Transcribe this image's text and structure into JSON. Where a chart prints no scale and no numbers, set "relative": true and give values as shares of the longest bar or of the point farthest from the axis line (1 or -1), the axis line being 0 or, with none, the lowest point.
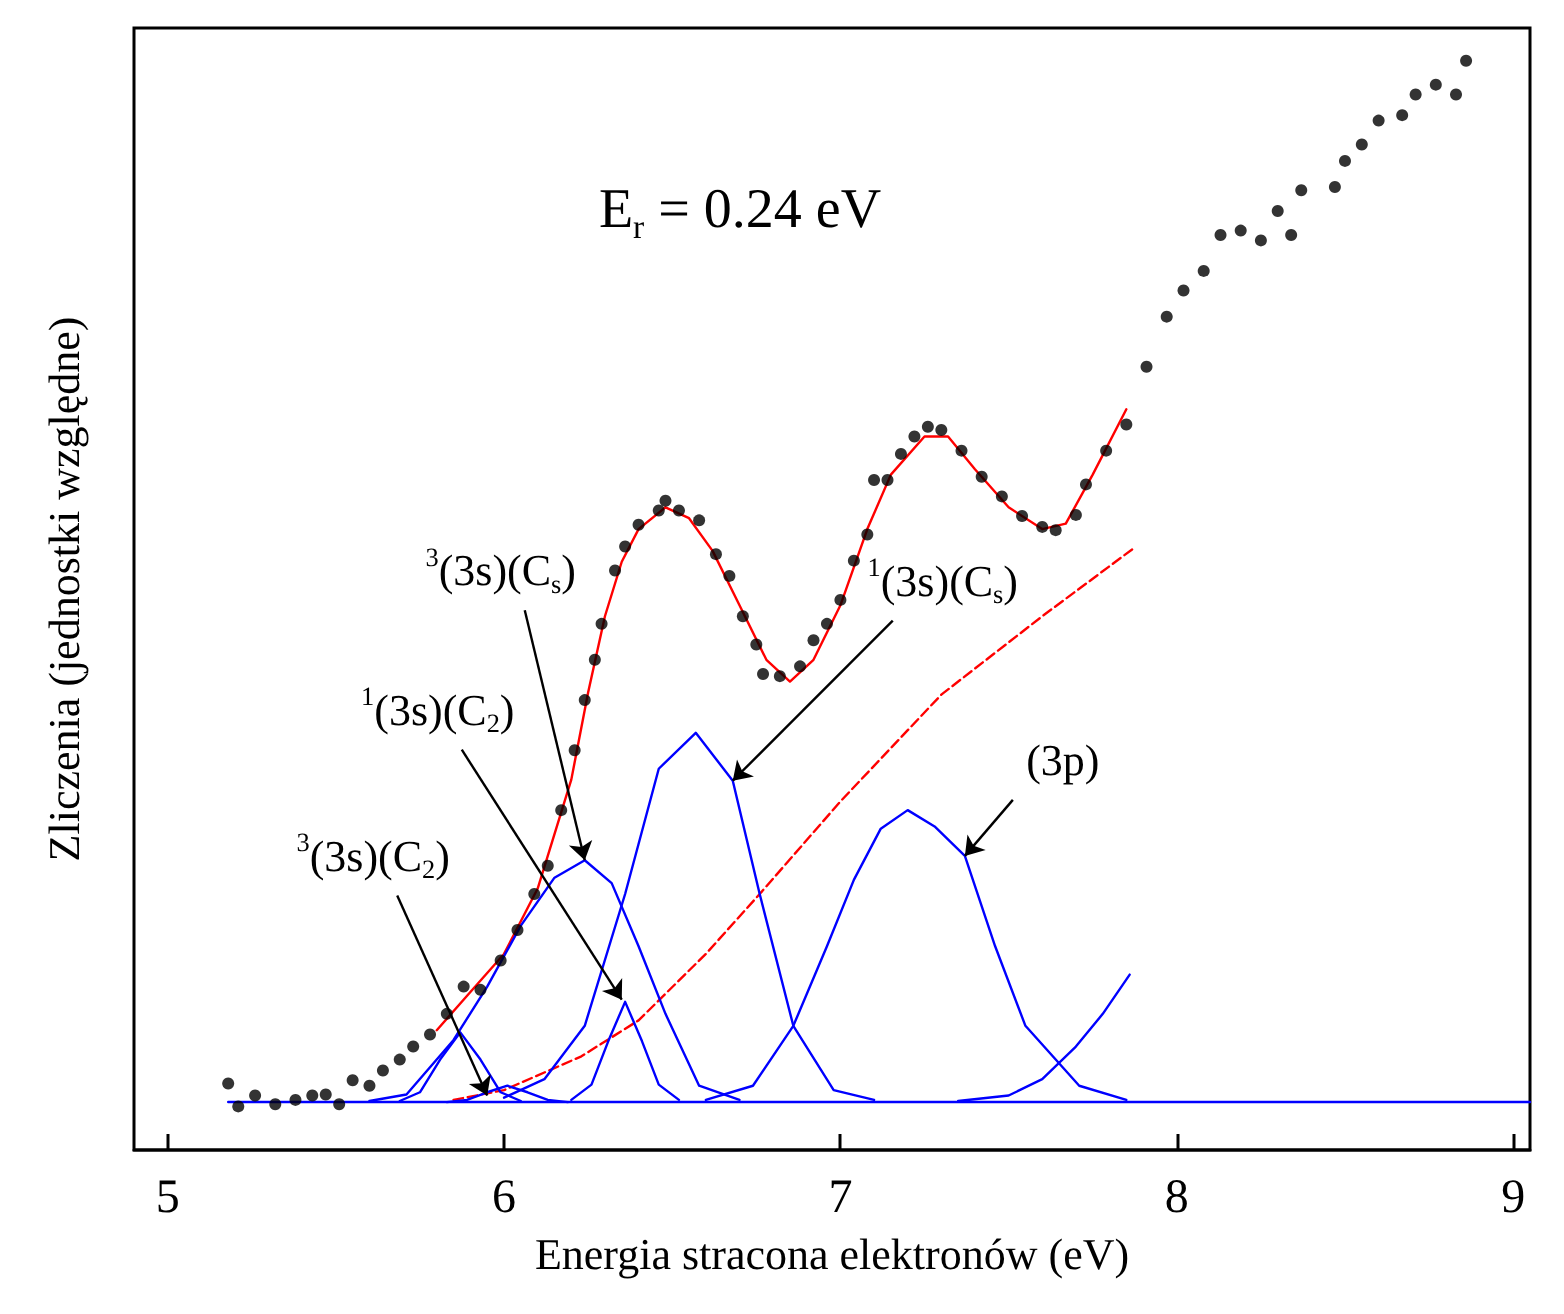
{
  "chart_data": {
    "type": "scatter",
    "relative": true,
    "xlabel": "Energia stracona elektronów (eV)",
    "ylabel": "Zliczenia (jednostki względne)",
    "xlim": [
      4.9,
      9.05
    ],
    "xticks": [
      5,
      6,
      7,
      8,
      9
    ],
    "annotations": [
      "E$_{r}$ = 0.24 eV",
      {
        "text": "$^{3}$(3s)(C$_{2}$)",
        "x": 5.95,
        "y": 0.05
      },
      {
        "text": "$^{1}$(3s)(C$_{2}$)",
        "x": 6.35,
        "y": 0.138
      },
      {
        "text": "$^{3}$(3s)(C$_{s}$)",
        "x": 6.24,
        "y": 0.266
      },
      {
        "text": "$^{1}$(3s)(C$_{s}$)",
        "x": 6.68,
        "y": 0.339
      },
      {
        "text": "(3p)",
        "x": 7.37,
        "y": 0.27
      }
    ],
    "series": [
      {
        "type": "scatter",
        "marker": "circle",
        "color": "#000000",
        "x": [
          5.18,
          5.21,
          5.26,
          5.32,
          5.38,
          5.43,
          5.47,
          5.51,
          5.55,
          5.6,
          5.64,
          5.69,
          5.73,
          5.78,
          5.83,
          5.88,
          5.93,
          5.99,
          6.04,
          6.09,
          6.13,
          6.17,
          6.21,
          6.24,
          6.27,
          6.29,
          6.33,
          6.36,
          6.4,
          6.46,
          6.48,
          6.52,
          6.58,
          6.63,
          6.67,
          6.71,
          6.75,
          6.77,
          6.82,
          6.88,
          6.92,
          6.96,
          7.0,
          7.04,
          7.08,
          7.1,
          7.14,
          7.18,
          7.22,
          7.26,
          7.3,
          7.36,
          7.42,
          7.48,
          7.54,
          7.6,
          7.64,
          7.7,
          7.73,
          7.79,
          7.85,
          7.91,
          7.97,
          8.02,
          8.08,
          8.13,
          8.19,
          8.25,
          8.3,
          8.34,
          8.37,
          8.47,
          8.5,
          8.55,
          8.6,
          8.67,
          8.71,
          8.77,
          8.83,
          8.86
        ],
        "values": [
          0.061,
          0.04,
          0.05,
          0.042,
          0.046,
          0.05,
          0.051,
          0.042,
          0.064,
          0.059,
          0.073,
          0.083,
          0.095,
          0.106,
          0.125,
          0.15,
          0.147,
          0.174,
          0.202,
          0.235,
          0.261,
          0.312,
          0.367,
          0.413,
          0.45,
          0.483,
          0.532,
          0.554,
          0.574,
          0.587,
          0.596,
          0.587,
          0.578,
          0.547,
          0.527,
          0.49,
          0.464,
          0.437,
          0.435,
          0.444,
          0.468,
          0.483,
          0.505,
          0.541,
          0.565,
          0.615,
          0.615,
          0.639,
          0.655,
          0.664,
          0.661,
          0.642,
          0.618,
          0.6,
          0.582,
          0.572,
          0.569,
          0.583,
          0.611,
          0.642,
          0.666,
          0.719,
          0.765,
          0.789,
          0.807,
          0.84,
          0.844,
          0.835,
          0.862,
          0.84,
          0.881,
          0.884,
          0.908,
          0.923,
          0.945,
          0.95,
          0.969,
          0.978,
          0.969,
          1
        ]
      },
      {
        "type": "line",
        "marker": "none",
        "color": "#ff0000",
        "x": [
          5.8,
          5.9,
          6.0,
          6.1,
          6.2,
          6.25,
          6.3,
          6.35,
          6.4,
          6.48,
          6.55,
          6.62,
          6.7,
          6.78,
          6.85,
          6.92,
          7.0,
          7.08,
          7.15,
          7.25,
          7.32,
          7.4,
          7.5,
          7.6,
          7.67,
          7.75,
          7.85
        ],
        "values": [
          0.11,
          0.145,
          0.18,
          0.24,
          0.34,
          0.42,
          0.49,
          0.54,
          0.57,
          0.59,
          0.58,
          0.55,
          0.5,
          0.45,
          0.43,
          0.45,
          0.5,
          0.57,
          0.62,
          0.655,
          0.655,
          0.625,
          0.59,
          0.57,
          0.575,
          0.62,
          0.68
        ]
      },
      {
        "type": "line",
        "marker": "none",
        "line_style": "dashed",
        "color": "#ff0000",
        "x": [
          5.85,
          6.0,
          6.23,
          6.4,
          6.6,
          6.76,
          7.0,
          7.3,
          7.6,
          7.87
        ],
        "values": [
          0.046,
          0.055,
          0.086,
          0.119,
          0.18,
          0.235,
          0.32,
          0.418,
          0.49,
          0.552
        ]
      },
      {
        "type": "line",
        "marker": "none",
        "color": "#0000ff",
        "x": [
          5.18,
          9.05
        ],
        "values": [
          0.044,
          0.044
        ]
      },
      {
        "type": "line",
        "marker": "none",
        "color": "#0000ff",
        "x": [
          5.69,
          5.75,
          5.81,
          5.87,
          5.93,
          5.99,
          6.05
        ],
        "values": [
          0.045,
          0.053,
          0.083,
          0.108,
          0.083,
          0.053,
          0.045
        ]
      },
      {
        "type": "line",
        "marker": "none",
        "color": "#0000ff",
        "x": [
          5.83,
          5.89,
          5.95,
          6.01,
          6.07,
          6.13,
          6.19
        ],
        "values": [
          0.044,
          0.046,
          0.053,
          0.059,
          0.053,
          0.046,
          0.044
        ]
      },
      {
        "type": "line",
        "marker": "none",
        "color": "#0000ff",
        "x": [
          5.6,
          5.71,
          5.85,
          5.95,
          6.05,
          6.15,
          6.24,
          6.32,
          6.4,
          6.48,
          6.58,
          6.7
        ],
        "values": [
          0.045,
          0.051,
          0.101,
          0.15,
          0.206,
          0.25,
          0.266,
          0.245,
          0.187,
          0.125,
          0.059,
          0.046
        ]
      },
      {
        "type": "line",
        "marker": "none",
        "color": "#0000ff",
        "x": [
          6.2,
          6.26,
          6.31,
          6.36,
          6.41,
          6.46,
          6.52
        ],
        "values": [
          0.046,
          0.06,
          0.1,
          0.136,
          0.1,
          0.06,
          0.046
        ]
      },
      {
        "type": "line",
        "marker": "none",
        "color": "#0000ff",
        "x": [
          6.0,
          6.12,
          6.24,
          6.36,
          6.46,
          6.57,
          6.68,
          6.76,
          6.86,
          6.98,
          7.1
        ],
        "values": [
          0.048,
          0.065,
          0.114,
          0.235,
          0.35,
          0.383,
          0.339,
          0.235,
          0.114,
          0.055,
          0.046
        ]
      },
      {
        "type": "line",
        "marker": "none",
        "color": "#0000ff",
        "x": [
          6.6,
          6.74,
          6.86,
          6.96,
          7.04,
          7.12,
          7.2,
          7.28,
          7.37,
          7.46,
          7.55,
          7.71,
          7.85
        ],
        "values": [
          0.046,
          0.059,
          0.114,
          0.187,
          0.248,
          0.295,
          0.312,
          0.297,
          0.27,
          0.187,
          0.114,
          0.059,
          0.046
        ]
      },
      {
        "type": "line",
        "marker": "none",
        "color": "#0000ff",
        "x": [
          7.35,
          7.5,
          7.6,
          7.7,
          7.78,
          7.86
        ],
        "values": [
          0.045,
          0.05,
          0.065,
          0.095,
          0.125,
          0.161
        ]
      }
    ]
  }
}
